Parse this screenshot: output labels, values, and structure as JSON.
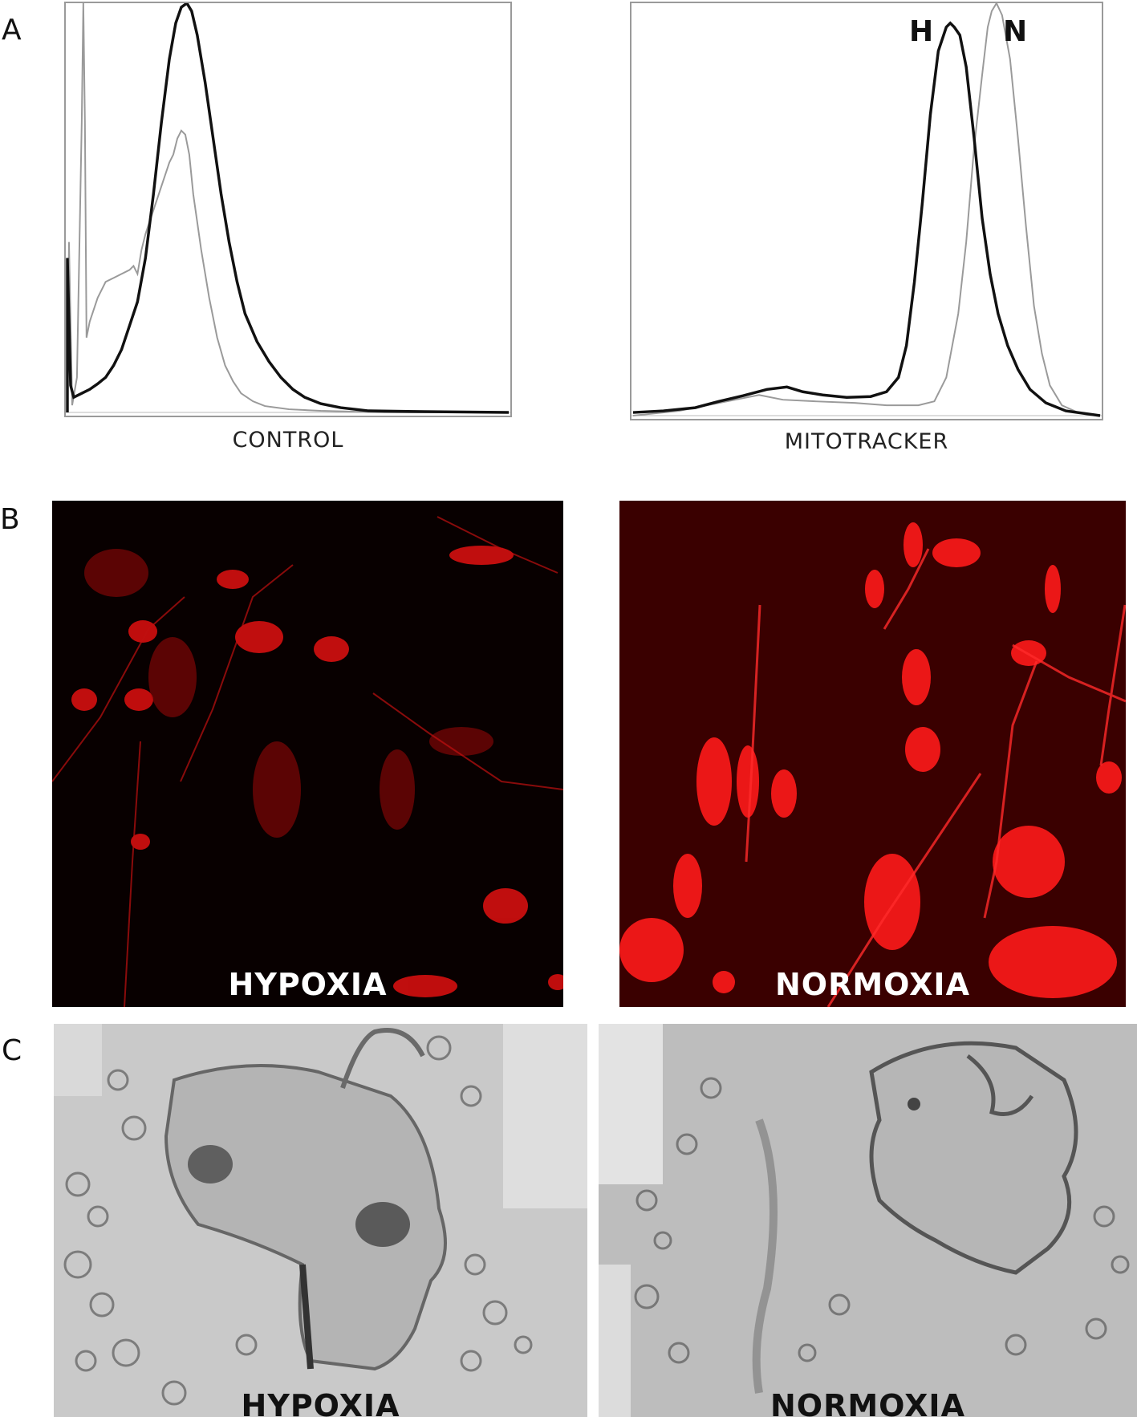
{
  "panels": {
    "a": {
      "letter": "A",
      "control": {
        "xlabel": "CONTROL"
      },
      "mitotracker": {
        "xlabel": "MITOTRACKER",
        "peak_h": "H",
        "peak_n": "N"
      }
    },
    "b": {
      "letter": "B",
      "left_caption": "HYPOXIA",
      "right_caption": "NORMOXIA"
    },
    "c": {
      "letter": "C",
      "left_caption": "HYPOXIA",
      "right_caption": "NORMOXIA"
    }
  },
  "colors": {
    "thick_line": "#111111",
    "thin_line": "#999999",
    "fluorescence_red": "#ff1a1a"
  }
}
